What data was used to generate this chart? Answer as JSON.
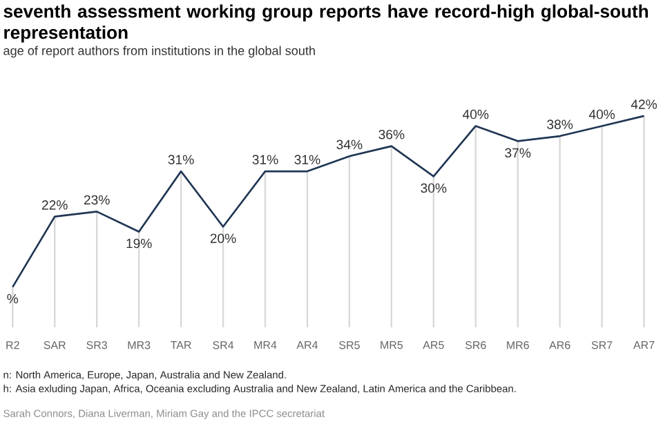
{
  "chart_data": {
    "type": "line",
    "title": "seventh assessment working group reports have record-high global-south representation",
    "subtitle": "age of report authors from institutions in the global south",
    "categories": [
      "R2",
      "SAR",
      "SR3",
      "MR3",
      "TAR",
      "SR4",
      "MR4",
      "AR4",
      "SR5",
      "MR5",
      "AR5",
      "SR6",
      "MR6",
      "AR6",
      "SR7",
      "AR7"
    ],
    "values": [
      8,
      22,
      23,
      19,
      31,
      20,
      31,
      31,
      34,
      36,
      30,
      40,
      37,
      38,
      40,
      42
    ],
    "value_labels": [
      "%",
      "22%",
      "23%",
      "19%",
      "31%",
      "20%",
      "31%",
      "31%",
      "34%",
      "36%",
      "30%",
      "40%",
      "37%",
      "38%",
      "40%",
      "42%"
    ],
    "color": "#1f3553",
    "grid": "x",
    "line_style": "solid",
    "annotations": [
      "n: North America, Europe, Japan, Australia and New Zealand.",
      "h: Asia exluding Japan, Africa, Oceania excluding Australia and New Zealand, Latin America and the Caribbean.",
      "Sarah Connors, Diana Liverman, Miriam Gay and the IPCC secretariat"
    ]
  }
}
